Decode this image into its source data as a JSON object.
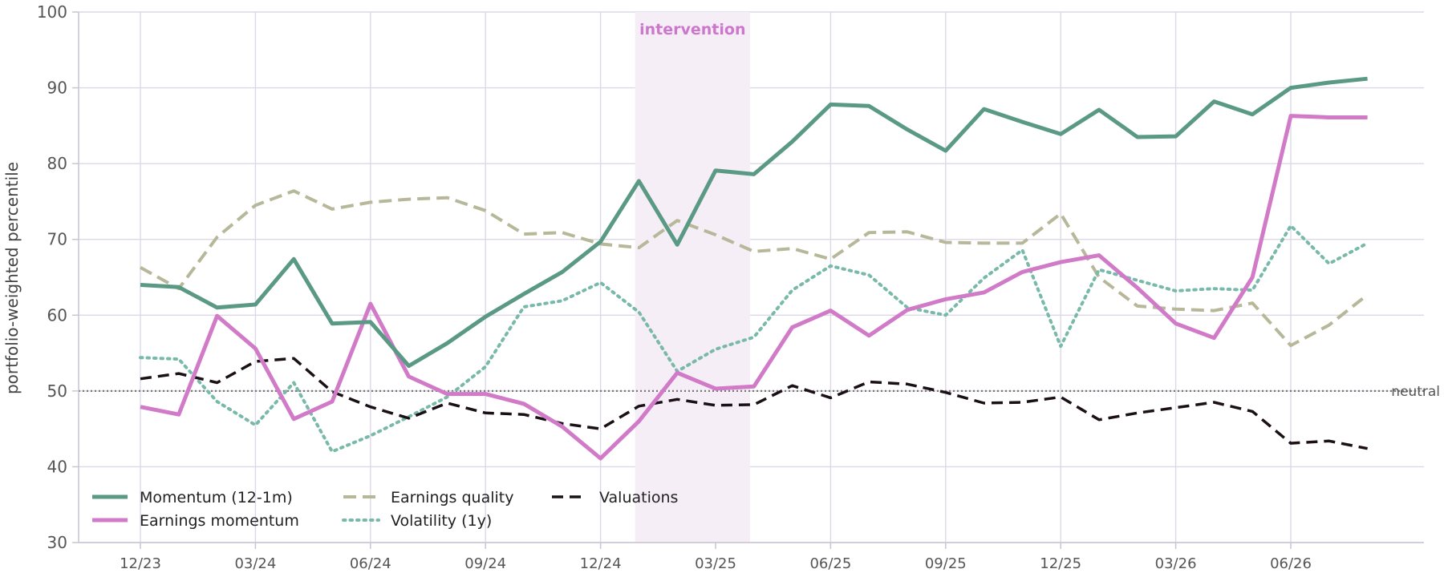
{
  "chart_data": {
    "type": "line",
    "title": "",
    "xlabel": "",
    "ylabel": "portfolio-weighted percentile",
    "ylim": [
      30,
      100
    ],
    "yticks": [
      30,
      40,
      50,
      60,
      70,
      80,
      90,
      100
    ],
    "grid": true,
    "legend_position": "lower-left",
    "x": [
      "2023-12",
      "2024-01",
      "2024-02",
      "2024-03",
      "2024-04",
      "2024-05",
      "2024-06",
      "2024-07",
      "2024-08",
      "2024-09",
      "2024-10",
      "2024-11",
      "2024-12",
      "2025-01",
      "2025-02",
      "2025-03",
      "2025-04",
      "2025-05",
      "2025-06",
      "2025-07",
      "2025-08",
      "2025-09",
      "2025-10",
      "2025-11",
      "2025-12",
      "2026-01",
      "2026-02",
      "2026-03",
      "2026-04",
      "2026-05",
      "2026-06",
      "2026-07",
      "2026-08"
    ],
    "xticks": [
      "2023-12",
      "2024-03",
      "2024-06",
      "2024-09",
      "2024-12",
      "2025-03",
      "2025-06",
      "2025-09",
      "2025-12",
      "2026-03",
      "2026-06"
    ],
    "xtick_labels": [
      "12/23",
      "03/24",
      "06/24",
      "09/24",
      "12/24",
      "03/25",
      "06/25",
      "09/25",
      "12/25",
      "03/26",
      "06/26"
    ],
    "reference_line": {
      "y": 50,
      "label": "neutral",
      "color": "#777777"
    },
    "annotation": {
      "label": "intervention",
      "x_start": "2025-01",
      "x_end": "2025-04",
      "color": "#cc77cc",
      "fill": "#f6eef7"
    },
    "series": [
      {
        "name": "Momentum (12-1m)",
        "color": "#5a9a85",
        "style": "solid",
        "width": 5,
        "values": [
          64.0,
          63.7,
          61.0,
          61.4,
          67.4,
          58.9,
          59.1,
          53.3,
          56.3,
          59.8,
          62.8,
          65.7,
          69.7,
          77.7,
          69.3,
          79.1,
          78.6,
          82.9,
          87.8,
          87.6,
          84.5,
          81.7,
          87.2,
          85.5,
          83.9,
          87.1,
          83.5,
          83.6,
          88.2,
          86.5,
          90.0,
          90.7,
          91.2
        ]
      },
      {
        "name": "Earnings momentum",
        "color": "#d07ac8",
        "style": "solid",
        "width": 5,
        "values": [
          47.9,
          46.9,
          59.9,
          55.6,
          46.3,
          48.6,
          61.5,
          51.9,
          49.6,
          49.6,
          48.3,
          45.3,
          41.1,
          46.0,
          52.4,
          50.3,
          50.6,
          58.4,
          60.6,
          57.3,
          60.7,
          62.1,
          63.0,
          65.7,
          67.0,
          67.9,
          63.6,
          58.9,
          57.0,
          65.0,
          86.3,
          86.1,
          86.1
        ]
      },
      {
        "name": "Earnings quality",
        "color": "#b7b899",
        "style": "dashed",
        "width": 4,
        "values": [
          66.3,
          63.5,
          70.3,
          74.5,
          76.4,
          74.0,
          74.9,
          75.3,
          75.5,
          73.8,
          70.7,
          70.9,
          69.4,
          68.9,
          72.5,
          70.6,
          68.4,
          68.8,
          67.4,
          70.9,
          71.0,
          69.6,
          69.5,
          69.5,
          73.4,
          65.0,
          61.2,
          60.8,
          60.6,
          61.6,
          56.0,
          58.7,
          62.7
        ]
      },
      {
        "name": "Volatility (1y)",
        "color": "#79b9a9",
        "style": "dotted",
        "width": 4,
        "values": [
          54.4,
          54.2,
          48.6,
          45.5,
          51.1,
          42.0,
          44.1,
          46.6,
          49.2,
          53.2,
          61.1,
          61.9,
          64.3,
          60.4,
          52.6,
          55.5,
          57.1,
          63.3,
          66.5,
          65.3,
          61.0,
          60.0,
          64.9,
          68.6,
          55.9,
          66.0,
          64.6,
          63.2,
          63.5,
          63.3,
          71.8,
          66.8,
          69.5
        ]
      },
      {
        "name": "Valuations",
        "color": "#1a1016",
        "style": "dashed",
        "width": 3.5,
        "values": [
          51.6,
          52.3,
          51.1,
          53.9,
          54.3,
          49.9,
          47.9,
          46.4,
          48.4,
          47.1,
          46.9,
          45.7,
          45.0,
          48.0,
          48.9,
          48.1,
          48.2,
          50.7,
          49.1,
          51.2,
          50.9,
          49.8,
          48.4,
          48.5,
          49.2,
          46.2,
          47.1,
          47.8,
          48.5,
          47.3,
          43.1,
          43.4,
          42.4
        ]
      }
    ]
  }
}
